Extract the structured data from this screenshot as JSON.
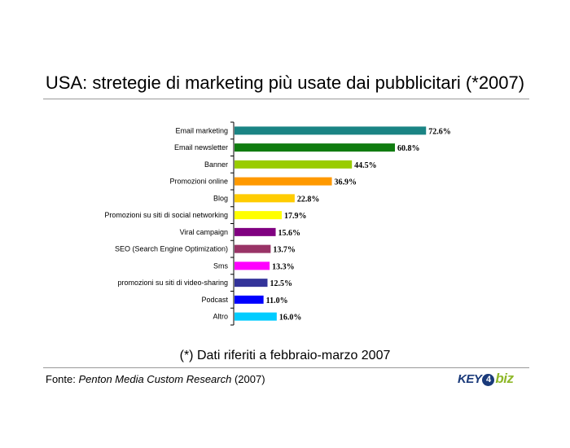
{
  "title": "USA: stretegie di marketing più usate dai pubblicitari (*2007)",
  "note": "(*) Dati riferiti a febbraio-marzo 2007",
  "source": {
    "prefix": "Fonte: ",
    "name": "Penton Media Custom Research",
    "suffix": " (2007)"
  },
  "logo": {
    "part1": "KEY",
    "part2": "4",
    "part3": "biz"
  },
  "chart_data": {
    "type": "bar",
    "orientation": "horizontal",
    "title": "USA: stretegie di marketing più usate dai pubblicitari (*2007)",
    "categories": [
      "Email marketing",
      "Email newsletter",
      "Banner",
      "Promozioni online",
      "Blog",
      "Promozioni su siti di social networking",
      "Viral campaign",
      "SEO (Search Engine Optimization)",
      "Sms",
      "promozioni su siti di video-sharing",
      "Podcast",
      "Altro"
    ],
    "values": [
      72.6,
      60.8,
      44.5,
      36.9,
      22.8,
      17.9,
      15.6,
      13.7,
      13.3,
      12.5,
      11.0,
      16.0
    ],
    "value_labels": [
      "72.6%",
      "60.8%",
      "44.5%",
      "36.9%",
      "22.8%",
      "17.9%",
      "15.6%",
      "13.7%",
      "13.3%",
      "12.5%",
      "11.0%",
      "16.0%"
    ],
    "colors": [
      "#1a8484",
      "#107c10",
      "#99cc00",
      "#ff9900",
      "#ffcc00",
      "#ffff00",
      "#800080",
      "#993366",
      "#ff00ff",
      "#333399",
      "#0000ff",
      "#00ccff"
    ],
    "xlim": [
      0,
      100
    ],
    "grid": false,
    "legend": "none"
  }
}
